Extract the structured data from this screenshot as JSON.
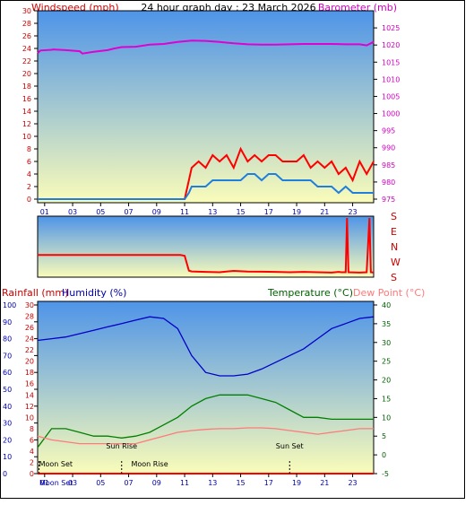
{
  "title": "24 hour graph day : 23 March 2026",
  "colors": {
    "frame": "#000000",
    "plot_top": "#4e94e8",
    "plot_bottom": "#fafcb9",
    "wind_gust": "#ff0000",
    "wind_avg": "#1f7fe0",
    "barometer": "#e000d0",
    "direction": "#ff0000",
    "humidity": "#0000c8",
    "temperature": "#008000",
    "dewpoint": "#ff7a7a",
    "rainfall": "#ff0000",
    "label_red": "#cc0000",
    "label_magenta": "#d000c0",
    "label_blue": "#0000b0",
    "label_green": "#006000"
  },
  "x_ticks": [
    "01",
    "03",
    "05",
    "07",
    "09",
    "11",
    "13",
    "15",
    "17",
    "19",
    "21",
    "23"
  ],
  "chart_data": [
    {
      "type": "line",
      "panel": "wind-barometer",
      "xlabel": "",
      "ylabel_left": "Windspeed (mph)",
      "ylabel_right": "Barometer (mb)",
      "xlim": [
        0,
        24
      ],
      "ylim_left": [
        0,
        30
      ],
      "ylim_right": [
        975,
        1030
      ],
      "left_ticks": [
        "0",
        "2",
        "4",
        "6",
        "8",
        "10",
        "12",
        "14",
        "16",
        "18",
        "20",
        "22",
        "24",
        "26",
        "28",
        "30"
      ],
      "right_ticks": [
        "975",
        "980",
        "985",
        "990",
        "995",
        "1000",
        "1005",
        "1010",
        "1015",
        "1020",
        "1025"
      ],
      "series": [
        {
          "name": "Wind Gust",
          "axis": "left",
          "x": [
            0,
            10.5,
            10.8,
            11,
            11.5,
            12,
            12.5,
            13,
            13.5,
            14,
            14.5,
            15,
            15.5,
            16,
            16.5,
            17,
            17.5,
            18,
            18.5,
            19,
            19.5,
            20,
            20.5,
            21,
            21.5,
            22,
            22.5,
            23,
            23.5,
            24
          ],
          "y": [
            0,
            0,
            3,
            5,
            6,
            5,
            7,
            6,
            7,
            5,
            8,
            6,
            7,
            6,
            7,
            7,
            6,
            6,
            6,
            7,
            5,
            6,
            5,
            6,
            4,
            5,
            3,
            6,
            4,
            6
          ]
        },
        {
          "name": "Wind Average",
          "axis": "left",
          "x": [
            0,
            10.5,
            10.8,
            11,
            11.5,
            12,
            12.5,
            13,
            13.5,
            14,
            14.5,
            15,
            15.5,
            16,
            16.5,
            17,
            17.5,
            18,
            18.5,
            19,
            19.5,
            20,
            20.5,
            21,
            21.5,
            22,
            22.5,
            23,
            23.5,
            24
          ],
          "y": [
            0,
            0,
            1,
            2,
            2,
            2,
            3,
            3,
            3,
            3,
            3,
            4,
            4,
            3,
            4,
            4,
            3,
            3,
            3,
            3,
            3,
            2,
            2,
            2,
            1,
            2,
            1,
            1,
            1,
            1
          ]
        },
        {
          "name": "Barometer",
          "axis": "right",
          "x": [
            0,
            0.2,
            1,
            1.1,
            2,
            3,
            3.2,
            4,
            5,
            5.5,
            6,
            7,
            8,
            9,
            10,
            11,
            12,
            13,
            14,
            15,
            16,
            17,
            18,
            19,
            20,
            21,
            22,
            23,
            23.5,
            24
          ],
          "y": [
            1017.6,
            1018.4,
            1018.6,
            1018.7,
            1018.5,
            1018.2,
            1017.5,
            1018.0,
            1018.5,
            1019.0,
            1019.4,
            1019.5,
            1020.1,
            1020.3,
            1020.9,
            1021.3,
            1021.2,
            1020.9,
            1020.5,
            1020.2,
            1020.1,
            1020.1,
            1020.2,
            1020.3,
            1020.3,
            1020.3,
            1020.2,
            1020.2,
            1019.9,
            1020.9
          ]
        }
      ]
    },
    {
      "type": "line",
      "panel": "wind-direction",
      "xlim": [
        0,
        24
      ],
      "ylabels": [
        "S",
        "E",
        "N",
        "W",
        "S"
      ],
      "ylim": [
        0,
        360
      ],
      "series": [
        {
          "name": "Wind Direction",
          "x": [
            0,
            10.2,
            10.5,
            10.8,
            11,
            12,
            13,
            14,
            15,
            16,
            17,
            18,
            19,
            20,
            21,
            21.5,
            21.7,
            22,
            22.1,
            22.2,
            23,
            23.5,
            23.7,
            23.8,
            24
          ],
          "y": [
            135,
            135,
            130,
            40,
            35,
            32,
            30,
            38,
            34,
            33,
            32,
            30,
            32,
            30,
            28,
            32,
            30,
            30,
            360,
            30,
            28,
            30,
            360,
            30,
            28
          ]
        }
      ]
    },
    {
      "type": "line",
      "panel": "humidity-temperature",
      "xlim": [
        0,
        24
      ],
      "ylabel_humidity": "Humidity (%)",
      "ylabel_rainfall": "Rainfall (mm)",
      "ylabel_temperature": "Temperature (°C)",
      "ylabel_dewpoint": "Dew Point (°C)",
      "humidity_ticks": [
        "0",
        "10",
        "20",
        "30",
        "40",
        "50",
        "60",
        "70",
        "80",
        "90",
        "100"
      ],
      "rainfall_ticks": [
        "0",
        "2",
        "4",
        "6",
        "8",
        "10",
        "12",
        "14",
        "16",
        "18",
        "20",
        "22",
        "24",
        "26",
        "28",
        "30"
      ],
      "temperature_ticks": [
        "-5",
        "0",
        "5",
        "10",
        "15",
        "20",
        "25",
        "30",
        "35",
        "40"
      ],
      "ylim_humidity": [
        0,
        100
      ],
      "ylim_temperature": [
        -5,
        40
      ],
      "series": [
        {
          "name": "Humidity",
          "axis": "humidity",
          "x": [
            0,
            1,
            2,
            3,
            4,
            5,
            6,
            7,
            8,
            9,
            10,
            11,
            12,
            13,
            14,
            15,
            16,
            17,
            18,
            19,
            20,
            21,
            22,
            23,
            24
          ],
          "y": [
            79,
            80,
            81,
            83,
            85,
            87,
            89,
            91,
            93,
            92,
            86,
            70,
            60,
            58,
            58,
            59,
            62,
            66,
            70,
            74,
            80,
            86,
            89,
            92,
            93
          ]
        },
        {
          "name": "Temperature",
          "axis": "temperature",
          "x": [
            0,
            1,
            2,
            3,
            4,
            5,
            6,
            7,
            8,
            9,
            10,
            11,
            12,
            13,
            14,
            15,
            16,
            17,
            18,
            19,
            20,
            21,
            22,
            23,
            24
          ],
          "y": [
            2,
            7,
            7,
            6,
            5,
            5,
            4.5,
            5,
            6,
            8,
            10,
            13,
            15,
            16,
            16,
            16,
            15,
            14,
            12,
            10,
            10,
            9.5,
            9.5,
            9.5,
            9.5
          ]
        },
        {
          "name": "Dew Point",
          "axis": "temperature",
          "x": [
            0,
            1,
            2,
            3,
            4,
            5,
            6,
            7,
            8,
            9,
            10,
            11,
            12,
            13,
            14,
            15,
            16,
            17,
            18,
            19,
            20,
            21,
            22,
            23,
            24
          ],
          "y": [
            5,
            4,
            3.5,
            3,
            3,
            3,
            3,
            3,
            4,
            5,
            6,
            6.5,
            6.8,
            7,
            7,
            7.2,
            7.2,
            7,
            6.5,
            6,
            5.5,
            6,
            6.5,
            7,
            7
          ]
        },
        {
          "name": "Rainfall",
          "axis": "rainfall",
          "x": [
            0,
            24
          ],
          "y": [
            0,
            0
          ]
        }
      ],
      "annotations": [
        {
          "text": "Moon Set",
          "x": 0.1,
          "marker": true
        },
        {
          "text": "Sun Rise",
          "x": 6.0,
          "marker": true
        },
        {
          "text": "Moon Rise",
          "x": 6.3,
          "marker": false
        },
        {
          "text": "Sun Set",
          "x": 18.0,
          "marker": true
        }
      ],
      "x_tick_first_label": "Moon Set"
    }
  ]
}
